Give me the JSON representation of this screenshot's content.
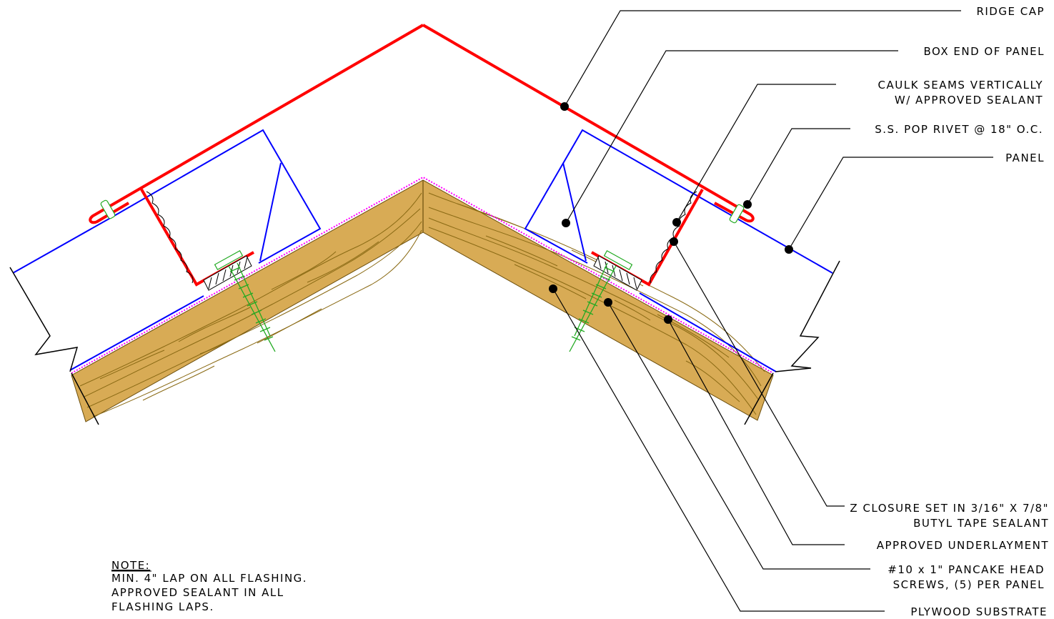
{
  "labels": {
    "ridge_cap": "RIDGE CAP",
    "box_end": "BOX END OF PANEL",
    "caulk_1": "CAULK SEAMS VERTICALLY",
    "caulk_2": "W/ APPROVED SEALANT",
    "rivet": "S.S. POP RIVET @ 18\" O.C.",
    "panel": "PANEL",
    "zclosure_1": "Z CLOSURE SET IN 3/16\" X 7/8\"",
    "zclosure_2": "BUTYL TAPE SEALANT",
    "underlayment": "APPROVED UNDERLAYMENT",
    "screws_1": "#10 x 1\" PANCAKE HEAD",
    "screws_2": "SCREWS, (5) PER PANEL",
    "plywood": "PLYWOOD SUBSTRATE"
  },
  "note": {
    "title": "NOTE:",
    "line1": "MIN. 4\" LAP ON ALL FLASHING.",
    "line2": "APPROVED SEALANT IN ALL",
    "line3": "FLASHING LAPS."
  },
  "colors": {
    "ridge_cap": "#ff0000",
    "panel": "#0000ff",
    "underlayment": "#ff00ff",
    "plywood": "#d8ab55",
    "screws": "#22aa22"
  }
}
